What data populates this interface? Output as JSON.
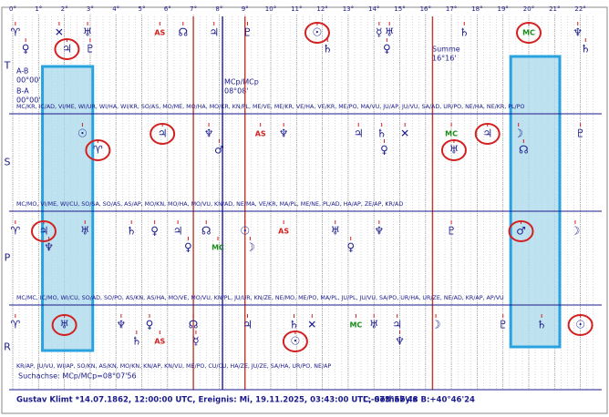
{
  "axis": {
    "lim": [
      0,
      22.6
    ],
    "ticks": [
      {
        "value": 0,
        "label": "0°"
      },
      {
        "value": 1,
        "label": "1°"
      },
      {
        "value": 2,
        "label": "2°"
      },
      {
        "value": 3,
        "label": "3°"
      },
      {
        "value": 4,
        "label": "4°"
      },
      {
        "value": 5,
        "label": "5°"
      },
      {
        "value": 6,
        "label": "6°"
      },
      {
        "value": 7,
        "label": "7°"
      },
      {
        "value": 8,
        "label": "8°"
      },
      {
        "value": 9,
        "label": "9°"
      },
      {
        "value": 10,
        "label": "10°"
      },
      {
        "value": 11,
        "label": "11°"
      },
      {
        "value": 12,
        "label": "12°"
      },
      {
        "value": 13,
        "label": "13°"
      },
      {
        "value": 14,
        "label": "14°"
      },
      {
        "value": 15,
        "label": "15°"
      },
      {
        "value": 16,
        "label": "16°"
      },
      {
        "value": 17,
        "label": "17°"
      },
      {
        "value": 18,
        "label": "18°"
      },
      {
        "value": 19,
        "label": "19°"
      },
      {
        "value": 20,
        "label": "20°"
      },
      {
        "value": 21,
        "label": "21°"
      },
      {
        "value": 22,
        "label": "22°"
      }
    ]
  },
  "lines": [
    {
      "deg": 7.0,
      "color": "#c0392b"
    },
    {
      "deg": 8.13,
      "color": "#1a1aa0"
    },
    {
      "deg": 9.0,
      "color": "#c0392b"
    },
    {
      "deg": 16.27,
      "color": "#c0392b"
    }
  ],
  "highlights": [
    [
      1.15,
      3.1
    ],
    [
      19.3,
      21.2
    ]
  ],
  "rows": [
    {
      "label": "T",
      "glyphs": [
        {
          "symbol": "♈",
          "deg": 0.1
        },
        {
          "symbol": "♀",
          "deg": 0.5
        },
        {
          "symbol": "✕",
          "deg": 1.8
        },
        {
          "symbol": "♃",
          "deg": 2.1,
          "circled": true
        },
        {
          "symbol": "♅",
          "deg": 2.9
        },
        {
          "symbol": "♇",
          "deg": 3.0
        },
        {
          "symbol": "AS",
          "deg": 5.7,
          "color": "#d32020"
        },
        {
          "symbol": "☊",
          "deg": 6.6
        },
        {
          "symbol": "♃",
          "deg": 7.8
        },
        {
          "symbol": "♇",
          "deg": 9.1
        },
        {
          "symbol": "☉",
          "deg": 11.8,
          "circled": true
        },
        {
          "symbol": "♄",
          "deg": 12.2
        },
        {
          "symbol": "☿",
          "deg": 14.2
        },
        {
          "symbol": "♀",
          "deg": 14.5
        },
        {
          "symbol": "♅",
          "deg": 14.6
        },
        {
          "symbol": "♄",
          "deg": 17.5
        },
        {
          "symbol": "MC",
          "deg": 20.0,
          "color": "#1a8c1a",
          "circled": true
        },
        {
          "symbol": "♆",
          "deg": 21.9
        },
        {
          "symbol": "♄",
          "deg": 22.2
        }
      ],
      "midpoints": "MC/KR, IC/AD, VI/ME, WI/UR, WI/HA, WI/KR, SO/AS, MO/ME, MO/HA, MO/KR, KN/PL, ME/VE, ME/KR, VE/HA, VE/KR, ME/PO, MA/VU, JU/AP, JU/VU, SA/AD, UR/PO, NE/HA, NE/KR, PL/PO"
    },
    {
      "label": "S",
      "glyphs": [
        {
          "symbol": "☉",
          "deg": 2.7
        },
        {
          "symbol": "♈",
          "deg": 3.3,
          "circled": true
        },
        {
          "symbol": "♃",
          "deg": 5.8,
          "circled": true
        },
        {
          "symbol": "♆",
          "deg": 7.6
        },
        {
          "symbol": "♂",
          "deg": 8.0
        },
        {
          "symbol": "AS",
          "deg": 9.6,
          "color": "#d32020"
        },
        {
          "symbol": "♆",
          "deg": 10.5
        },
        {
          "symbol": "♃",
          "deg": 13.4
        },
        {
          "symbol": "♄",
          "deg": 14.3
        },
        {
          "symbol": "♀",
          "deg": 14.4
        },
        {
          "symbol": "✕",
          "deg": 15.2
        },
        {
          "symbol": "MC",
          "deg": 17.0,
          "color": "#1a8c1a"
        },
        {
          "symbol": "♅",
          "deg": 17.1,
          "circled": true
        },
        {
          "symbol": "♃",
          "deg": 18.4,
          "circled": true
        },
        {
          "symbol": "☽",
          "deg": 19.6
        },
        {
          "symbol": "☊",
          "deg": 19.8
        },
        {
          "symbol": "♇",
          "deg": 22.0
        }
      ],
      "midpoints": "MC/MO, VI/ME, WI/CU, SO/SA, SO/AS, AS/AP, MO/KN, MO/HA, MO/VU, KN/AD, NE/MA, VE/KR, MA/PL, ME/NE, PL/AD, HA/AP, ZE/AP, KR/AD"
    },
    {
      "label": "P",
      "glyphs": [
        {
          "symbol": "♈",
          "deg": 0.1
        },
        {
          "symbol": "♃",
          "deg": 1.2,
          "circled": true
        },
        {
          "symbol": "♆",
          "deg": 1.4
        },
        {
          "symbol": "♅",
          "deg": 2.8
        },
        {
          "symbol": "♄",
          "deg": 4.6
        },
        {
          "symbol": "♀",
          "deg": 5.5
        },
        {
          "symbol": "♃",
          "deg": 6.4
        },
        {
          "symbol": "♀",
          "deg": 6.8
        },
        {
          "symbol": "☊",
          "deg": 7.5
        },
        {
          "symbol": "MC",
          "deg": 7.95,
          "color": "#1a8c1a"
        },
        {
          "symbol": "☉",
          "deg": 9.0
        },
        {
          "symbol": "☽",
          "deg": 9.2
        },
        {
          "symbol": "AS",
          "deg": 10.5,
          "color": "#d32020"
        },
        {
          "symbol": "♅",
          "deg": 12.5
        },
        {
          "symbol": "♀",
          "deg": 13.1
        },
        {
          "symbol": "♆",
          "deg": 14.2
        },
        {
          "symbol": "♇",
          "deg": 17.0
        },
        {
          "symbol": "♂",
          "deg": 19.7,
          "circled": true
        },
        {
          "symbol": "☽",
          "deg": 21.8
        }
      ],
      "midpoints": "MC/MC, IC/MO, WI/CU, SO/AD, SO/PO, AS/KN, AS/HA, MO/VE, MO/VU, KN/PL, JU/UR, KN/ZE, NE/MO, ME/PO, MA/PL, JU/PL, JU/VU, SA/PO, UR/HA, UR/ZE, NE/AD, KR/AP, AP/VU"
    },
    {
      "label": "R",
      "glyphs": [
        {
          "symbol": "♈",
          "deg": 0.1
        },
        {
          "symbol": "♅",
          "deg": 2.0,
          "circled": true
        },
        {
          "symbol": "♆",
          "deg": 4.2
        },
        {
          "symbol": "♄",
          "deg": 4.8
        },
        {
          "symbol": "♀",
          "deg": 5.3
        },
        {
          "symbol": "AS",
          "deg": 5.7,
          "color": "#d32020"
        },
        {
          "symbol": "☊",
          "deg": 7.0
        },
        {
          "symbol": "☿",
          "deg": 7.1
        },
        {
          "symbol": "♃",
          "deg": 9.1
        },
        {
          "symbol": "♄",
          "deg": 10.9
        },
        {
          "symbol": "☉",
          "deg": 10.95,
          "circled": true
        },
        {
          "symbol": "✕",
          "deg": 11.6
        },
        {
          "symbol": "MC",
          "deg": 13.3,
          "color": "#1a8c1a"
        },
        {
          "symbol": "♅",
          "deg": 14.0
        },
        {
          "symbol": "♃",
          "deg": 14.9
        },
        {
          "symbol": "♆",
          "deg": 15.0
        },
        {
          "symbol": "☽",
          "deg": 16.4
        },
        {
          "symbol": "♇",
          "deg": 19.0
        },
        {
          "symbol": "♄",
          "deg": 20.5
        },
        {
          "symbol": "☉",
          "deg": 22.0,
          "circled": true
        }
      ],
      "midpoints": "KR/AP, JU/VU, WI/AP, SO/KN, AS/KN, MO/KN, KN/AP, KN/VU, ME/PO, CU/CU, HA/ZE, JU/ZE, SA/HA, UR/PO, NE/AP"
    }
  ],
  "notes": {
    "ab": "A-B",
    "ab_val": "00°00'",
    "ba": "B-A",
    "ba_val": "00°00'",
    "mcp": "MCp/MCp",
    "mcp_val": "08°08'",
    "summe": "Summe",
    "summe_val": "16°16'",
    "axis": "Suchachse: MCp/MCp=08°07'56"
  },
  "footer": {
    "person": "Gustav Klimt  *14.07.1862, 12:00:00 UTC, Ereignis: Mi, 19.11.2025, 03:43:00 UTC, Sotheby's",
    "coords": "L:-073°57'48 B:+40°46'24"
  }
}
